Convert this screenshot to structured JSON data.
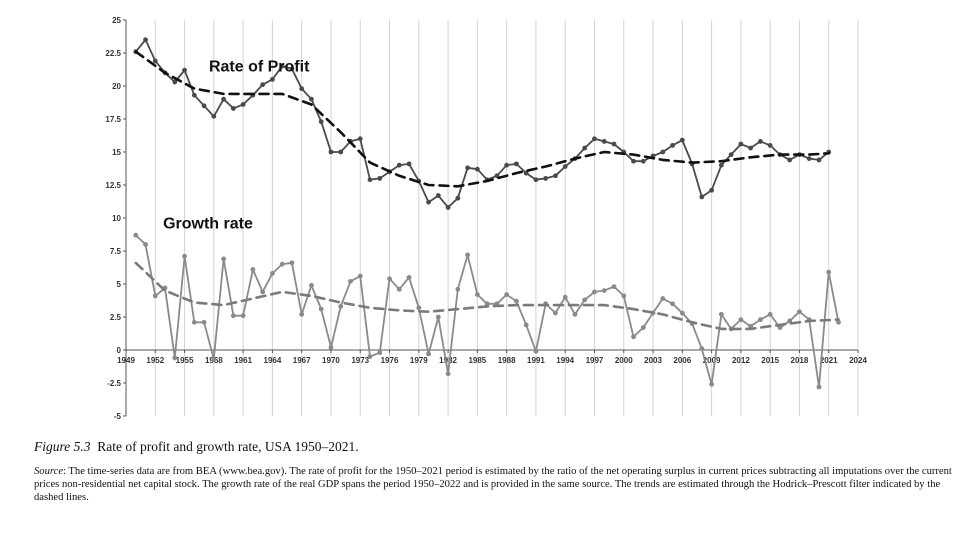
{
  "figure": {
    "number": "Figure 5.3",
    "title": "Rate of profit and growth rate, USA 1950–2021.",
    "source_label": "Source",
    "source_text": ": The time-series data are from BEA (www.bea.gov). The rate of profit for the 1950–2021 period is estimated by the ratio of the net operating surplus in current prices subtracting all imputations over the current prices non-residential net capital stock. The growth rate of the real GDP spans the period 1950–2022 and is provided in the same source. The trends are estimated through the Hodrick–Prescott filter indicated by the dashed lines."
  },
  "chart_data": {
    "type": "line",
    "xlim": [
      1949,
      2024
    ],
    "ylim": [
      -5,
      25
    ],
    "x_ticks": [
      1949,
      1952,
      1955,
      1958,
      1961,
      1964,
      1967,
      1970,
      1973,
      1976,
      1979,
      1982,
      1985,
      1988,
      1991,
      1994,
      1997,
      2000,
      2003,
      2006,
      2009,
      2012,
      2015,
      2018,
      2021,
      2024
    ],
    "y_ticks": [
      -5,
      -2.5,
      0,
      2.5,
      5,
      7.5,
      10,
      12.5,
      15,
      17.5,
      20,
      22.5,
      25
    ],
    "y_tick_labels": [
      "-5",
      "-2.5",
      "0",
      "2.5",
      "5",
      "7.5",
      "10",
      "12.5",
      "15",
      "17.5",
      "20",
      "22.5",
      "25"
    ],
    "grid": "vertical",
    "series": [
      {
        "name": "Rate of Profit",
        "color": "#4a4a4a",
        "x": [
          1950,
          1951,
          1952,
          1953,
          1954,
          1955,
          1956,
          1957,
          1958,
          1959,
          1960,
          1961,
          1962,
          1963,
          1964,
          1965,
          1966,
          1967,
          1968,
          1969,
          1970,
          1971,
          1972,
          1973,
          1974,
          1975,
          1976,
          1977,
          1978,
          1979,
          1980,
          1981,
          1982,
          1983,
          1984,
          1985,
          1986,
          1987,
          1988,
          1989,
          1990,
          1991,
          1992,
          1993,
          1994,
          1995,
          1996,
          1997,
          1998,
          1999,
          2000,
          2001,
          2002,
          2003,
          2004,
          2005,
          2006,
          2007,
          2008,
          2009,
          2010,
          2011,
          2012,
          2013,
          2014,
          2015,
          2016,
          2017,
          2018,
          2019,
          2020,
          2021
        ],
        "values": [
          22.6,
          23.5,
          21.9,
          21.0,
          20.3,
          21.2,
          19.3,
          18.5,
          17.7,
          19.0,
          18.3,
          18.6,
          19.3,
          20.1,
          20.5,
          21.5,
          21.3,
          19.8,
          19.0,
          17.3,
          15.0,
          15.0,
          15.8,
          16.0,
          12.9,
          13.0,
          13.5,
          14.0,
          14.1,
          12.8,
          11.2,
          11.7,
          10.8,
          11.5,
          13.8,
          13.7,
          12.9,
          13.2,
          14.0,
          14.1,
          13.4,
          12.9,
          13.0,
          13.2,
          13.9,
          14.5,
          15.3,
          16.0,
          15.8,
          15.6,
          15.0,
          14.3,
          14.3,
          14.7,
          15.0,
          15.5,
          15.9,
          14.1,
          11.6,
          12.1,
          14.0,
          14.8,
          15.6,
          15.3,
          15.8,
          15.5,
          14.8,
          14.4,
          14.8,
          14.5,
          14.4,
          15.0
        ]
      },
      {
        "name": "Rate of Profit trend",
        "style": "dashed",
        "color": "#111111",
        "x": [
          1950,
          1953,
          1956,
          1959,
          1962,
          1965,
          1968,
          1971,
          1974,
          1977,
          1980,
          1983,
          1986,
          1989,
          1992,
          1995,
          1998,
          2001,
          2004,
          2007,
          2010,
          2013,
          2016,
          2019,
          2021
        ],
        "values": [
          22.6,
          21.0,
          19.8,
          19.4,
          19.4,
          19.4,
          18.6,
          16.5,
          14.2,
          13.2,
          12.5,
          12.4,
          12.8,
          13.4,
          13.9,
          14.5,
          15.0,
          14.8,
          14.4,
          14.2,
          14.3,
          14.6,
          14.8,
          14.8,
          14.9
        ]
      },
      {
        "name": "Growth rate",
        "color": "#8a8a8a",
        "x": [
          1950,
          1951,
          1952,
          1953,
          1954,
          1955,
          1956,
          1957,
          1958,
          1959,
          1960,
          1961,
          1962,
          1963,
          1964,
          1965,
          1966,
          1967,
          1968,
          1969,
          1970,
          1971,
          1972,
          1973,
          1974,
          1975,
          1976,
          1977,
          1978,
          1979,
          1980,
          1981,
          1982,
          1983,
          1984,
          1985,
          1986,
          1987,
          1988,
          1989,
          1990,
          1991,
          1992,
          1993,
          1994,
          1995,
          1996,
          1997,
          1998,
          1999,
          2000,
          2001,
          2002,
          2003,
          2004,
          2005,
          2006,
          2007,
          2008,
          2009,
          2010,
          2011,
          2012,
          2013,
          2014,
          2015,
          2016,
          2017,
          2018,
          2019,
          2020,
          2021,
          2022
        ],
        "values": [
          8.7,
          8.0,
          4.1,
          4.7,
          -0.6,
          7.1,
          2.1,
          2.1,
          -0.7,
          6.9,
          2.6,
          2.6,
          6.1,
          4.4,
          5.8,
          6.5,
          6.6,
          2.7,
          4.9,
          3.1,
          0.2,
          3.3,
          5.2,
          5.6,
          -0.5,
          -0.2,
          5.4,
          4.6,
          5.5,
          3.2,
          -0.3,
          2.5,
          -1.8,
          4.6,
          7.2,
          4.2,
          3.5,
          3.5,
          4.2,
          3.7,
          1.9,
          -0.1,
          3.5,
          2.8,
          4.0,
          2.7,
          3.8,
          4.4,
          4.5,
          4.8,
          4.1,
          1.0,
          1.7,
          2.8,
          3.9,
          3.5,
          2.8,
          2.0,
          0.1,
          -2.6,
          2.7,
          1.6,
          2.3,
          1.8,
          2.3,
          2.7,
          1.7,
          2.2,
          2.9,
          2.3,
          -2.8,
          5.9,
          2.1
        ]
      },
      {
        "name": "Growth rate trend",
        "style": "dashed",
        "color": "#7a7a7a",
        "x": [
          1950,
          1953,
          1956,
          1959,
          1962,
          1965,
          1968,
          1971,
          1974,
          1977,
          1980,
          1983,
          1986,
          1989,
          1992,
          1995,
          1998,
          2001,
          2004,
          2007,
          2010,
          2013,
          2016,
          2019,
          2022
        ],
        "values": [
          6.6,
          4.5,
          3.6,
          3.4,
          3.9,
          4.4,
          4.1,
          3.6,
          3.2,
          3.0,
          2.9,
          3.1,
          3.3,
          3.4,
          3.4,
          3.4,
          3.4,
          3.1,
          2.7,
          2.1,
          1.6,
          1.6,
          1.9,
          2.2,
          2.3
        ]
      }
    ],
    "labels": [
      {
        "text": "Rate of Profit",
        "x": 1957.5,
        "y": 21.1
      },
      {
        "text": "Growth rate",
        "x": 1952.8,
        "y": 9.2
      }
    ]
  }
}
